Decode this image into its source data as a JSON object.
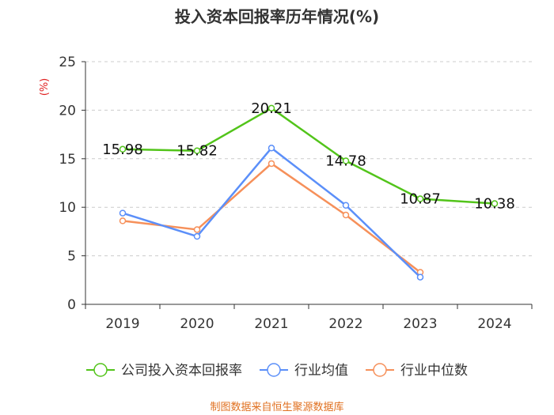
{
  "chart_data": {
    "type": "line",
    "title": "投入资本回报率历年情况(%)",
    "ylabel": "(%)",
    "xlabel": "",
    "categories": [
      "2019",
      "2020",
      "2021",
      "2022",
      "2023",
      "2024"
    ],
    "ylim": [
      0,
      25
    ],
    "yticks": [
      "0",
      "5",
      "10",
      "15",
      "20",
      "25"
    ],
    "grid": "horizontal-dashed",
    "legend_position": "bottom",
    "series": [
      {
        "name": "公司投入资本回报率",
        "color": "#52c41a",
        "values": [
          15.98,
          15.82,
          20.21,
          14.78,
          10.87,
          10.38
        ],
        "labels": [
          "15.98",
          "15.82",
          "20.21",
          "14.78",
          "10.87",
          "10.38"
        ]
      },
      {
        "name": "行业均值",
        "color": "#5b8ff9",
        "values": [
          9.4,
          7.0,
          16.1,
          10.2,
          2.8,
          null
        ],
        "labels": []
      },
      {
        "name": "行业中位数",
        "color": "#f6905a",
        "values": [
          8.6,
          7.7,
          14.5,
          9.2,
          3.3,
          null
        ],
        "labels": []
      }
    ]
  },
  "source": "制图数据来自恒生聚源数据库",
  "colors": {
    "title": "#333333",
    "axis": "#333333",
    "grid": "#cccccc",
    "ylabel": "#e02020",
    "source": "#e07020"
  }
}
